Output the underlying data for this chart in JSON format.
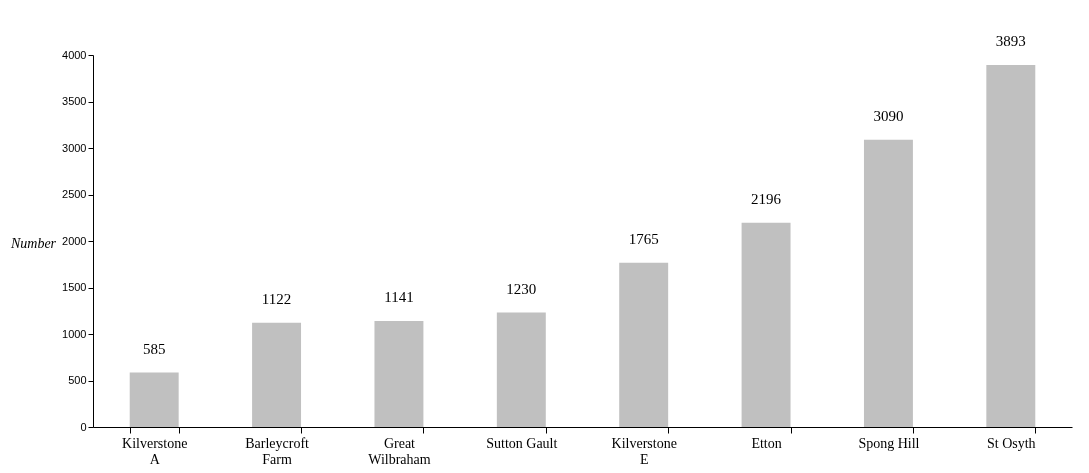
{
  "chart_data": {
    "type": "bar",
    "ylabel": "Number",
    "categories": [
      "Kilverstone A",
      "Barleycroft Farm",
      "Great Wilbraham",
      "Sutton Gault",
      "Kilverstone E",
      "Etton",
      "Spong Hill",
      "St Osyth"
    ],
    "values": [
      585,
      1122,
      1141,
      1230,
      1765,
      2196,
      3090,
      3893
    ],
    "color": "#c0c0c0",
    "ylim": [
      0,
      4000
    ],
    "yticks": [
      0,
      500,
      1000,
      1500,
      2000,
      2500,
      3000,
      3500,
      4000
    ],
    "grid": false,
    "data_labels": true
  }
}
